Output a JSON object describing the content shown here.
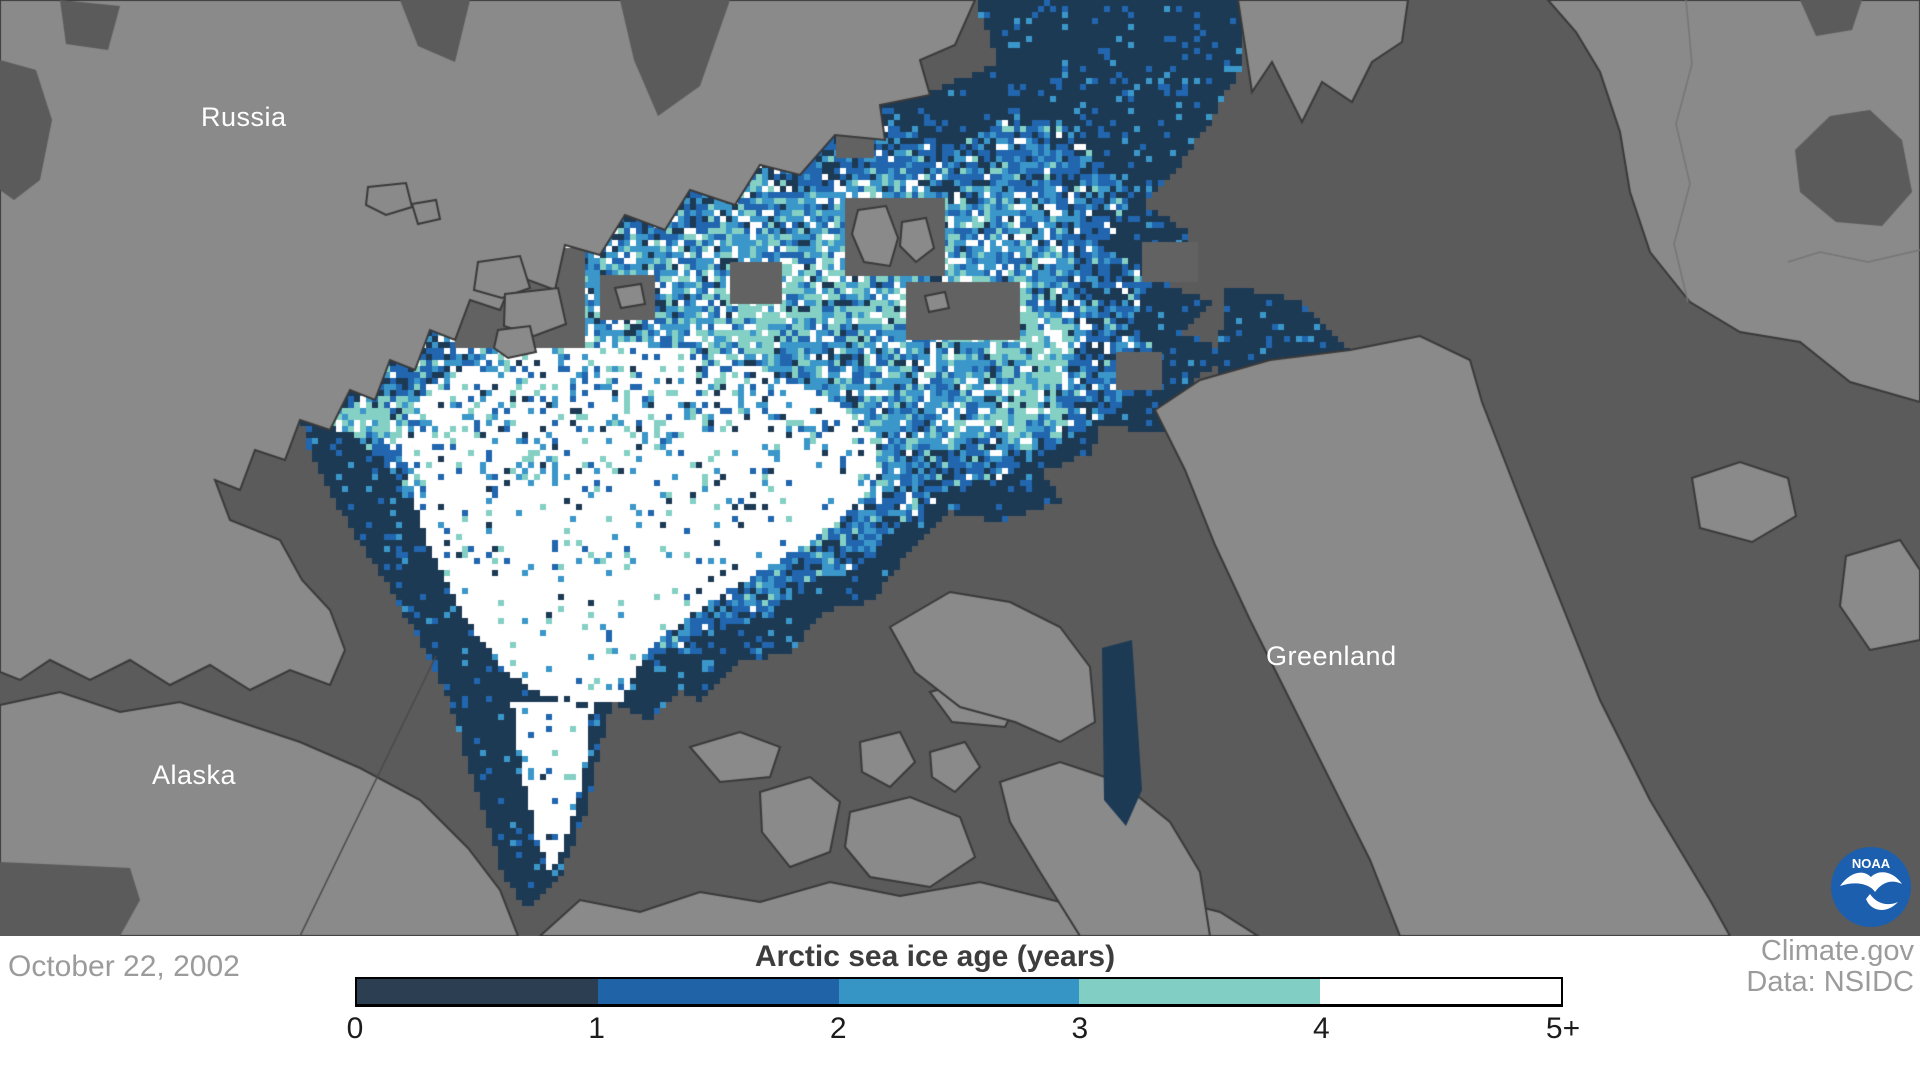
{
  "map": {
    "labels": {
      "russia": "Russia",
      "alaska": "Alaska",
      "greenland": "Greenland"
    },
    "colors": {
      "ocean": "#5b5b5b",
      "land": "#8a8a8a",
      "coast_outline": "#3a3a3a",
      "data_hole": "#626262",
      "border_line": "#767676",
      "dateline": "#4a4a4a",
      "ice_age_0": "#1d3a55",
      "ice_age_1": "#2166ae",
      "ice_age_2": "#3b97c9",
      "ice_age_3": "#85d0c4",
      "ice_age_4": "#ffffff"
    }
  },
  "footer": {
    "date": "October 22, 2002",
    "legend": {
      "title": "Arctic sea ice age (years)",
      "ticks": [
        "0",
        "1",
        "2",
        "3",
        "4",
        "5+"
      ],
      "segment_colors": [
        "#2b3e52",
        "#2063a7",
        "#3795c6",
        "#81cec5",
        "#ffffff"
      ]
    },
    "credits": {
      "line1": "Climate.gov",
      "line2": "Data: NSIDC"
    }
  },
  "logo": {
    "name": "NOAA",
    "text": "NOAA",
    "circle_color": "#1c5fae"
  }
}
